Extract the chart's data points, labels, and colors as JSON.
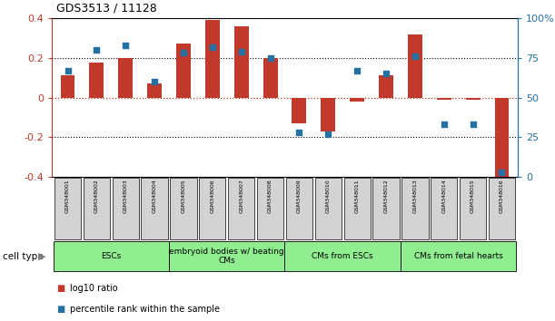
{
  "title": "GDS3513 / 11128",
  "samples": [
    "GSM348001",
    "GSM348002",
    "GSM348003",
    "GSM348004",
    "GSM348005",
    "GSM348006",
    "GSM348007",
    "GSM348008",
    "GSM348009",
    "GSM348010",
    "GSM348011",
    "GSM348012",
    "GSM348013",
    "GSM348014",
    "GSM348015",
    "GSM348016"
  ],
  "log10_ratio": [
    0.11,
    0.175,
    0.2,
    0.07,
    0.27,
    0.39,
    0.36,
    0.2,
    -0.13,
    -0.17,
    -0.02,
    0.11,
    0.32,
    -0.01,
    -0.01,
    -0.42
  ],
  "percentile_rank": [
    67,
    80,
    83,
    60,
    78,
    82,
    79,
    75,
    28,
    27,
    67,
    65,
    76,
    33,
    33,
    3
  ],
  "bar_color": "#c0392b",
  "dot_color": "#2471a3",
  "ylim_left": [
    -0.4,
    0.4
  ],
  "ylim_right": [
    0,
    100
  ],
  "yticks_left": [
    -0.4,
    -0.2,
    0.0,
    0.2,
    0.4
  ],
  "yticks_right": [
    0,
    25,
    50,
    75,
    100
  ],
  "dotted_hlines": [
    0.2,
    -0.2
  ],
  "bar_width": 0.5,
  "cell_groups": [
    {
      "label": "ESCs",
      "start": 0,
      "end": 3
    },
    {
      "label": "embryoid bodies w/ beating\nCMs",
      "start": 4,
      "end": 7
    },
    {
      "label": "CMs from ESCs",
      "start": 8,
      "end": 11
    },
    {
      "label": "CMs from fetal hearts",
      "start": 12,
      "end": 15
    }
  ],
  "cell_group_color": "#90ee90",
  "sample_box_color": "#d3d3d3",
  "legend_labels": [
    "log10 ratio",
    "percentile rank within the sample"
  ],
  "legend_colors": [
    "#c0392b",
    "#2471a3"
  ],
  "cell_type_label": "cell type",
  "arrow_color": "#808080",
  "bg_color": "#ffffff",
  "spine_color_top_bottom": "#000000"
}
